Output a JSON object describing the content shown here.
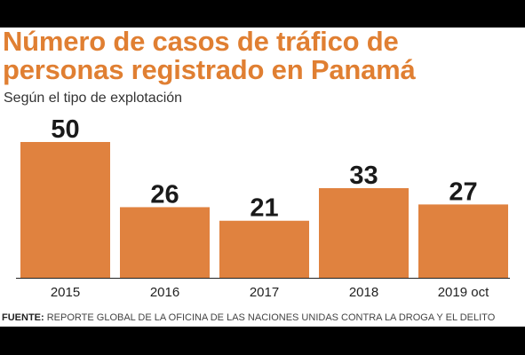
{
  "chart_data": {
    "type": "bar",
    "title": "Número de casos de tráfico de personas registrado en Panamá",
    "subtitle": "Según el tipo de explotación",
    "categories": [
      "2015",
      "2016",
      "2017",
      "2018",
      "2019 oct"
    ],
    "values": [
      50,
      26,
      21,
      33,
      27
    ],
    "xlabel": "",
    "ylabel": "",
    "ylim": [
      0,
      50
    ],
    "grid": false,
    "legend": "none",
    "bar_color": "#e0823f",
    "title_color": "#e07f32",
    "source_label": "FUENTE:",
    "source_text": "REPORTE GLOBAL DE LA OFICINA DE LAS NACIONES UNIDAS CONTRA LA DROGA Y EL DELITO"
  }
}
